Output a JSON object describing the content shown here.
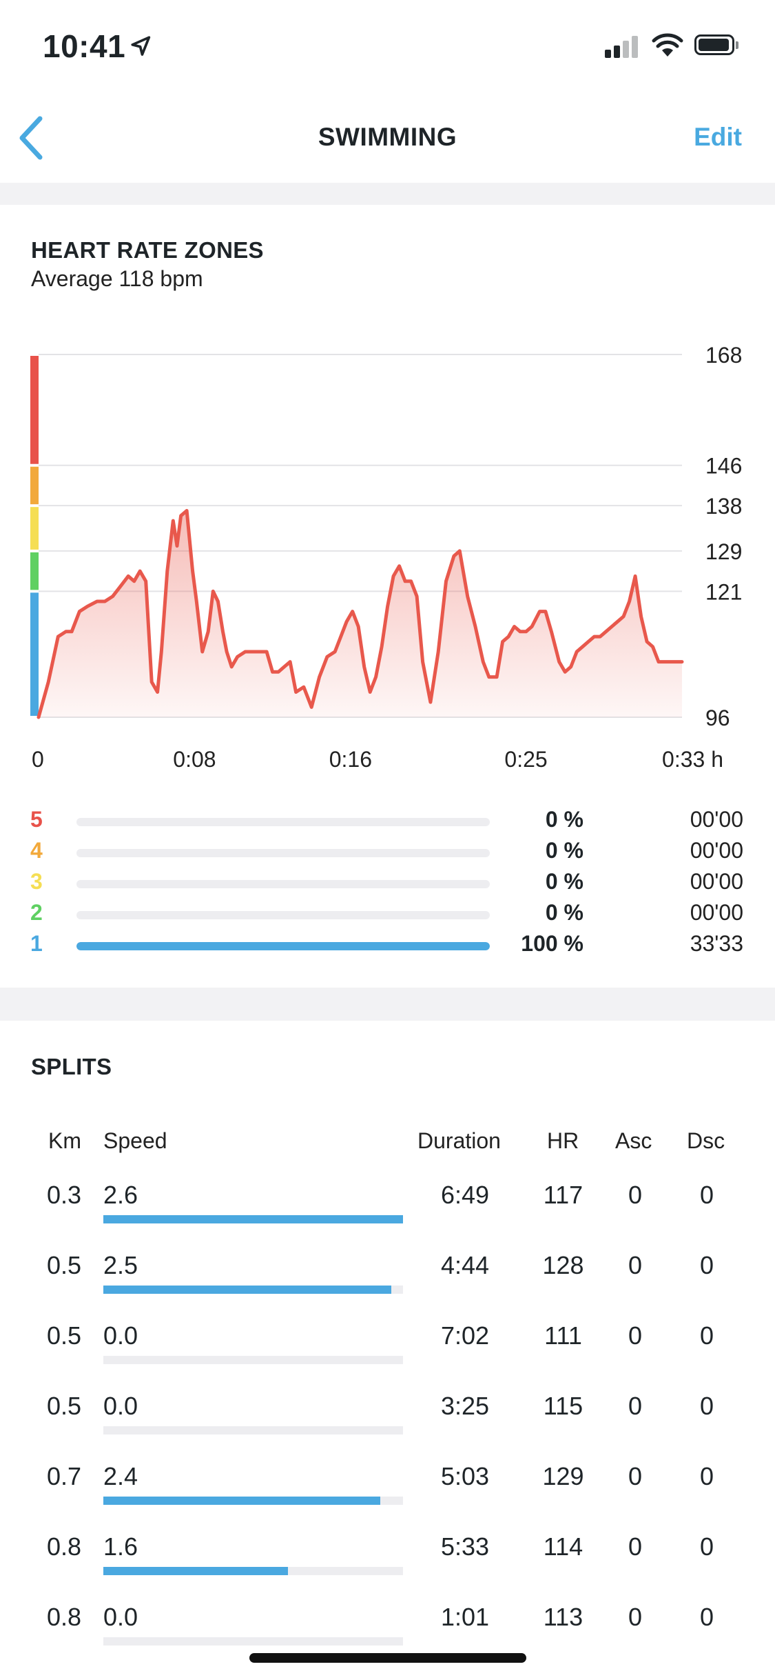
{
  "status_bar": {
    "time": "10:41"
  },
  "nav": {
    "title": "SWIMMING",
    "edit_label": "Edit"
  },
  "heart_rate": {
    "title": "HEART RATE ZONES",
    "subtitle": "Average 118 bpm",
    "zones": [
      {
        "num": "5",
        "pct": "0 %",
        "time": "00'00",
        "fraction": 0,
        "color": "#e8524a"
      },
      {
        "num": "4",
        "pct": "0 %",
        "time": "00'00",
        "fraction": 0,
        "color": "#f2a93b"
      },
      {
        "num": "3",
        "pct": "0 %",
        "time": "00'00",
        "fraction": 0,
        "color": "#f5de54"
      },
      {
        "num": "2",
        "pct": "0 %",
        "time": "00'00",
        "fraction": 0,
        "color": "#5fd062"
      },
      {
        "num": "1",
        "pct": "100 %",
        "time": "33'33",
        "fraction": 1,
        "color": "#4aa8e0"
      }
    ]
  },
  "chart_data": {
    "type": "area",
    "xlabel": "",
    "ylabel": "",
    "x_tick_labels": [
      "0",
      "0:08",
      "0:16",
      "0:25",
      "0:33 h"
    ],
    "x_tick_values": [
      0,
      8,
      16,
      25,
      33
    ],
    "y_tick_labels": [
      "168",
      "146",
      "138",
      "129",
      "121",
      "96"
    ],
    "y_tick_values": [
      168,
      146,
      138,
      129,
      121,
      96
    ],
    "xlim": [
      0,
      33
    ],
    "ylim": [
      96,
      168
    ],
    "grid": true,
    "zone_band_colors": [
      "#e8524a",
      "#f2a93b",
      "#f5de54",
      "#5fd062",
      "#4aa8e0"
    ],
    "line_color": "#e8584c",
    "series": [
      {
        "x": [
          0,
          0.5,
          1,
          1.4,
          1.7,
          2.1,
          2.5,
          3,
          3.4,
          3.8,
          4.2,
          4.6,
          4.9,
          5.2,
          5.5,
          5.8,
          6.1,
          6.3,
          6.6,
          6.9,
          7.1,
          7.3,
          7.6,
          7.9,
          8.1,
          8.4,
          8.7,
          8.95,
          9.2,
          9.45,
          9.65,
          9.9,
          10.2,
          10.6,
          11,
          11.3,
          11.7,
          12,
          12.3,
          12.6,
          12.9,
          13.2,
          13.6,
          14,
          14.4,
          14.8,
          15.2,
          15.5,
          15.8,
          16.1,
          16.4,
          16.7,
          17,
          17.3,
          17.6,
          17.9,
          18.2,
          18.5,
          18.8,
          19.1,
          19.4,
          19.7,
          20.1,
          20.5,
          20.9,
          21.3,
          21.6,
          22,
          22.4,
          22.8,
          23.1,
          23.5,
          23.8,
          24.1,
          24.4,
          24.7,
          25,
          25.3,
          25.7,
          26,
          26.3,
          26.7,
          27,
          27.3,
          27.6,
          27.9,
          28.2,
          28.5,
          28.8,
          29.1,
          29.4,
          29.7,
          30,
          30.3,
          30.6,
          30.9,
          31.2,
          31.5,
          31.8,
          32.1,
          32.4,
          32.7,
          33
        ],
        "y": [
          96,
          103,
          112,
          113,
          113,
          117,
          118,
          119,
          119,
          120,
          122,
          124,
          123,
          125,
          123,
          103,
          101,
          109,
          125,
          135,
          130,
          136,
          137,
          125,
          119,
          109,
          113,
          121,
          119,
          113,
          109,
          106,
          108,
          109,
          109,
          109,
          109,
          105,
          105,
          106,
          107,
          101,
          102,
          98,
          104,
          108,
          109,
          112,
          115,
          117,
          114,
          106,
          101,
          104,
          110,
          118,
          124,
          126,
          123,
          123,
          120,
          107,
          99,
          109,
          123,
          128,
          129,
          120,
          114,
          107,
          104,
          104,
          111,
          112,
          114,
          113,
          113,
          114,
          117,
          117,
          113,
          107,
          105,
          106,
          109,
          110,
          111,
          112,
          112,
          113,
          114,
          115,
          116,
          119,
          124,
          116,
          111,
          110,
          107,
          107,
          107,
          107,
          107
        ]
      }
    ]
  },
  "splits": {
    "title": "SPLITS",
    "headers": {
      "km": "Km",
      "speed": "Speed",
      "duration": "Duration",
      "hr": "HR",
      "asc": "Asc",
      "dsc": "Dsc"
    },
    "max_speed": 2.6,
    "rows": [
      {
        "km": "0.3",
        "speed": "2.6",
        "speed_value": 2.6,
        "duration": "6:49",
        "hr": "117",
        "asc": "0",
        "dsc": "0"
      },
      {
        "km": "0.5",
        "speed": "2.5",
        "speed_value": 2.5,
        "duration": "4:44",
        "hr": "128",
        "asc": "0",
        "dsc": "0"
      },
      {
        "km": "0.5",
        "speed": "0.0",
        "speed_value": 0.0,
        "duration": "7:02",
        "hr": "111",
        "asc": "0",
        "dsc": "0"
      },
      {
        "km": "0.5",
        "speed": "0.0",
        "speed_value": 0.0,
        "duration": "3:25",
        "hr": "115",
        "asc": "0",
        "dsc": "0"
      },
      {
        "km": "0.7",
        "speed": "2.4",
        "speed_value": 2.4,
        "duration": "5:03",
        "hr": "129",
        "asc": "0",
        "dsc": "0"
      },
      {
        "km": "0.8",
        "speed": "1.6",
        "speed_value": 1.6,
        "duration": "5:33",
        "hr": "114",
        "asc": "0",
        "dsc": "0"
      },
      {
        "km": "0.8",
        "speed": "0.0",
        "speed_value": 0.0,
        "duration": "1:01",
        "hr": "113",
        "asc": "0",
        "dsc": "0"
      }
    ]
  }
}
